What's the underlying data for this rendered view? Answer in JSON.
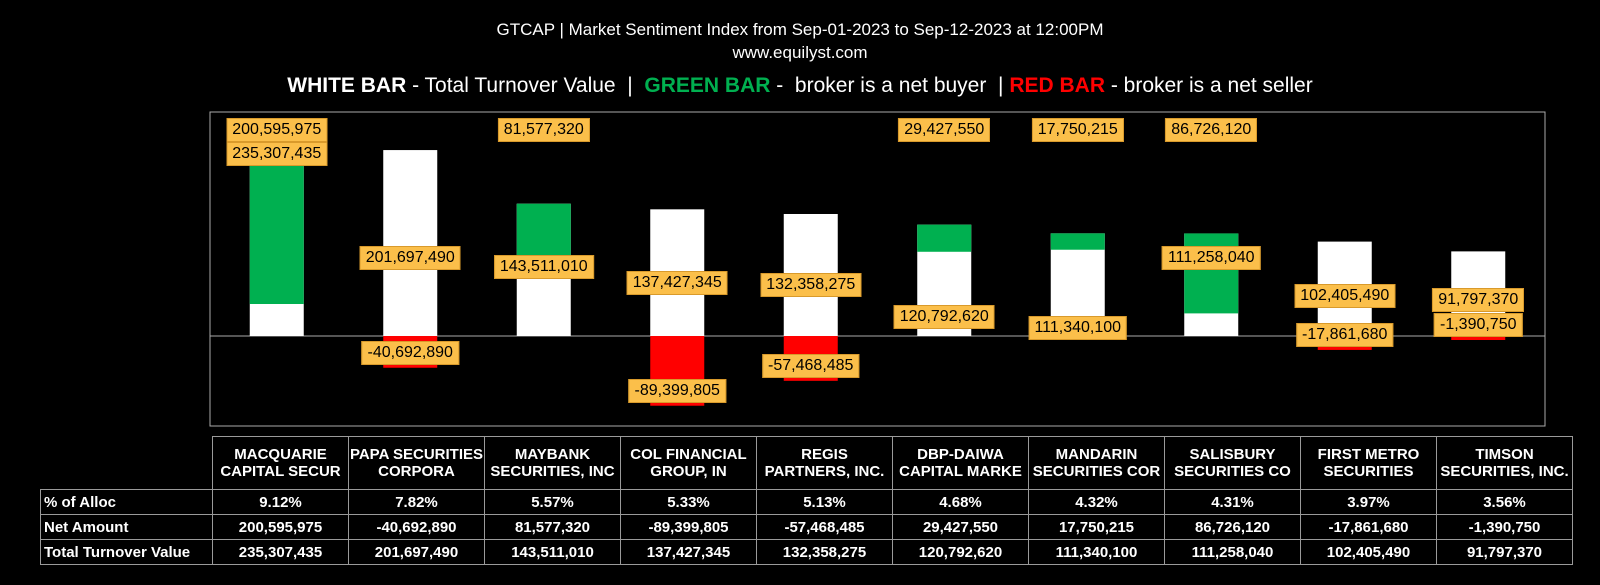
{
  "title": "GTCAP | Market Sentiment Index from Sep-01-2023 to Sep-12-2023 at 12:00PM",
  "website": "www.equilyst.com",
  "legend": {
    "white_key": "WHITE BAR",
    "white_text": " - Total Turnover Value  |  ",
    "green_key": "GREEN BAR",
    "green_text": " -  broker is a net buyer  | ",
    "red_key": "RED BAR",
    "red_text": " - broker is a net seller"
  },
  "colors": {
    "background": "#000000",
    "turnover_bar": "#ffffff",
    "net_buyer": "#00b050",
    "net_seller": "#ff0000",
    "label_bg": "#fbbf4a"
  },
  "table": {
    "row_labels": [
      "% of Alloc",
      "Net Amount",
      "Total Turnover Value"
    ]
  },
  "chart_data": {
    "type": "bar",
    "categories": [
      "MACQUARIE CAPITAL SECUR",
      "PAPA SECURITIES CORPORA",
      "MAYBANK SECURITIES, INC",
      "COL FINANCIAL GROUP, IN",
      "REGIS PARTNERS, INC.",
      "DBP-DAIWA CAPITAL MARKE",
      "MANDARIN SECURITIES COR",
      "SALISBURY SECURITIES CO",
      "FIRST METRO SECURITIES",
      "TIMSON SECURITIES, INC."
    ],
    "series": [
      {
        "values": [
          235307435,
          201697490,
          143511010,
          137427345,
          132358275,
          120792620,
          111340100,
          111258040,
          102405490,
          91797370
        ],
        "labels": [
          "235,307,435",
          "201,697,490",
          "143,511,010",
          "137,427,345",
          "132,358,275",
          "120,792,620",
          "111,340,100",
          "111,258,040",
          "102,405,490",
          "91,797,370"
        ]
      },
      {
        "values": [
          200595975,
          -40692890,
          81577320,
          -89399805,
          -57468485,
          29427550,
          17750215,
          86726120,
          -17861680,
          -1390750
        ],
        "labels": [
          "200,595,975",
          "-40,692,890",
          "81,577,320",
          "-89,399,805",
          "-57,468,485",
          "29,427,550",
          "17,750,215",
          "86,726,120",
          "-17,861,680",
          "-1,390,750"
        ]
      }
    ],
    "alloc_pct": [
      "9.12%",
      "7.82%",
      "5.57%",
      "5.33%",
      "5.13%",
      "4.68%",
      "4.32%",
      "4.31%",
      "3.97%",
      "3.56%"
    ]
  }
}
